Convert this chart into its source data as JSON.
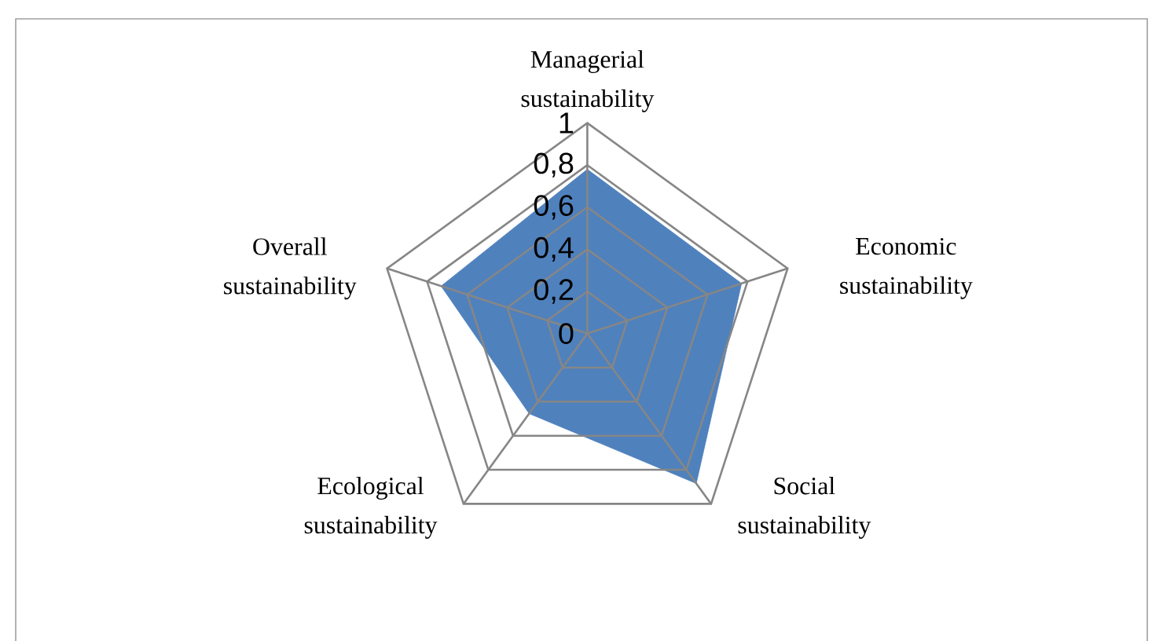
{
  "chart_data": {
    "type": "radar",
    "categories": [
      "Managerial sustainability",
      "Economic sustainability",
      "Social sustainability",
      "Ecological sustainability",
      "Overall sustainability"
    ],
    "series": [
      {
        "color": "#4f81bd",
        "values": [
          0.78,
          0.77,
          0.88,
          0.47,
          0.73
        ]
      }
    ],
    "ylim": [
      0,
      1
    ],
    "yticks": [
      0,
      {
        "value": 0.2,
        "label": "0,2"
      },
      {
        "value": 0.4,
        "label": "0,4"
      },
      {
        "value": 0.6,
        "label": "0,6"
      },
      {
        "value": 0.8,
        "label": "0,8"
      },
      1
    ],
    "grid": true
  }
}
